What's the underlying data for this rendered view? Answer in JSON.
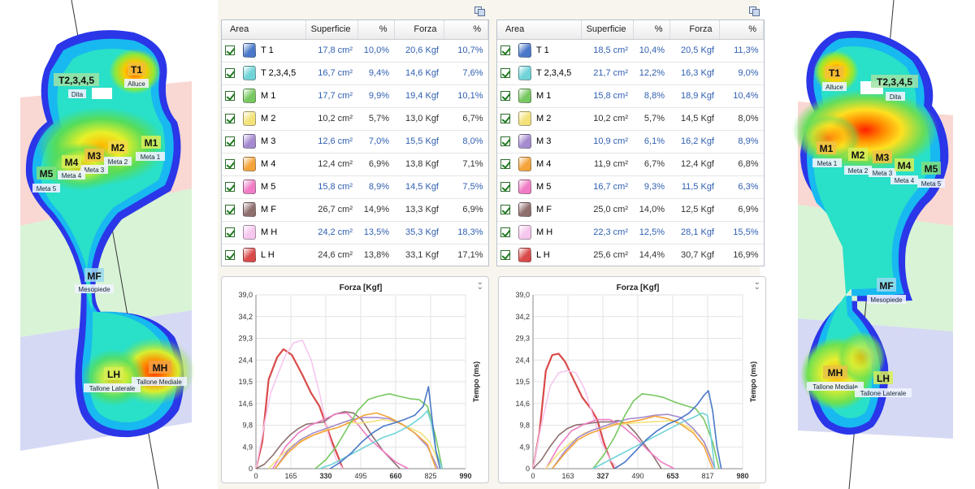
{
  "feet": {
    "left": {
      "labels": [
        {
          "key": "T1",
          "title": "T1",
          "sub": "Alluce"
        },
        {
          "key": "T2",
          "title": "T2,3,4,5",
          "sub": "Dita"
        },
        {
          "key": "M1",
          "title": "M1",
          "sub": "Meta 1"
        },
        {
          "key": "M2",
          "title": "M2",
          "sub": "Meta 2"
        },
        {
          "key": "M3",
          "title": "M3",
          "sub": "Meta 3"
        },
        {
          "key": "M4",
          "title": "M4",
          "sub": "Meta 4"
        },
        {
          "key": "M5",
          "title": "M5",
          "sub": "Meta 5"
        },
        {
          "key": "MF",
          "title": "MF",
          "sub": "Mesopiede"
        },
        {
          "key": "LH",
          "title": "LH",
          "sub": "Tallone Laterale"
        },
        {
          "key": "MH",
          "title": "MH",
          "sub": "Tallone Mediale"
        }
      ]
    },
    "right": {
      "labels": [
        {
          "key": "T1",
          "title": "T1",
          "sub": "Alluce"
        },
        {
          "key": "T2",
          "title": "T2,3,4,5",
          "sub": "Dita"
        },
        {
          "key": "M1",
          "title": "M1",
          "sub": "Meta 1"
        },
        {
          "key": "M2",
          "title": "M2",
          "sub": "Meta 2"
        },
        {
          "key": "M3",
          "title": "M3",
          "sub": "Meta 3"
        },
        {
          "key": "M4",
          "title": "M4",
          "sub": "Meta 4"
        },
        {
          "key": "M5",
          "title": "M5",
          "sub": "Meta 5"
        },
        {
          "key": "MF",
          "title": "MF",
          "sub": "Mesopiede"
        },
        {
          "key": "MH",
          "title": "MH",
          "sub": "Tallone Mediale"
        },
        {
          "key": "LH",
          "title": "LH",
          "sub": "Tallone Laterale"
        }
      ]
    }
  },
  "table_headers": {
    "area": "Area",
    "superficie": "Superficie",
    "pct1": "%",
    "forza": "Forza",
    "pct2": "%"
  },
  "zone_colors": {
    "T 1": "#4a78c8",
    "T 2,3,4,5": "#6fd3d8",
    "M 1": "#77c860",
    "M 2": "#f3e27a",
    "M 3": "#a58ad0",
    "M 4": "#f4a43a",
    "M 5": "#ef7cc4",
    "M F": "#8f6e6e",
    "M H": "#f6c6ee",
    "L H": "#d94a4a"
  },
  "tables": {
    "left": [
      {
        "area": "T 1",
        "superficie": "17,8 cm²",
        "pct1": "10,0%",
        "forza": "20,6 Kgf",
        "pct2": "10,7%"
      },
      {
        "area": "T 2,3,4,5",
        "superficie": "16,7 cm²",
        "pct1": "9,4%",
        "forza": "14,6 Kgf",
        "pct2": "7,6%"
      },
      {
        "area": "M 1",
        "superficie": "17,7 cm²",
        "pct1": "9,9%",
        "forza": "19,4 Kgf",
        "pct2": "10,1%"
      },
      {
        "area": "M 2",
        "superficie": "10,2 cm²",
        "pct1": "5,7%",
        "forza": "13,0 Kgf",
        "pct2": "6,7%"
      },
      {
        "area": "M 3",
        "superficie": "12,6 cm²",
        "pct1": "7,0%",
        "forza": "15,5 Kgf",
        "pct2": "8,0%"
      },
      {
        "area": "M 4",
        "superficie": "12,4 cm²",
        "pct1": "6,9%",
        "forza": "13,8 Kgf",
        "pct2": "7,1%"
      },
      {
        "area": "M 5",
        "superficie": "15,8 cm²",
        "pct1": "8,9%",
        "forza": "14,5 Kgf",
        "pct2": "7,5%"
      },
      {
        "area": "M F",
        "superficie": "26,7 cm²",
        "pct1": "14,9%",
        "forza": "13,3 Kgf",
        "pct2": "6,9%"
      },
      {
        "area": "M H",
        "superficie": "24,2 cm²",
        "pct1": "13,5%",
        "forza": "35,3 Kgf",
        "pct2": "18,3%"
      },
      {
        "area": "L H",
        "superficie": "24,6 cm²",
        "pct1": "13,8%",
        "forza": "33,1 Kgf",
        "pct2": "17,1%"
      }
    ],
    "right": [
      {
        "area": "T 1",
        "superficie": "18,5 cm²",
        "pct1": "10,4%",
        "forza": "20,5 Kgf",
        "pct2": "11,3%"
      },
      {
        "area": "T 2,3,4,5",
        "superficie": "21,7 cm²",
        "pct1": "12,2%",
        "forza": "16,3 Kgf",
        "pct2": "9,0%"
      },
      {
        "area": "M 1",
        "superficie": "15,8 cm²",
        "pct1": "8,8%",
        "forza": "18,9 Kgf",
        "pct2": "10,4%"
      },
      {
        "area": "M 2",
        "superficie": "10,2 cm²",
        "pct1": "5,7%",
        "forza": "14,5 Kgf",
        "pct2": "8,0%"
      },
      {
        "area": "M 3",
        "superficie": "10,9 cm²",
        "pct1": "6,1%",
        "forza": "16,2 Kgf",
        "pct2": "8,9%"
      },
      {
        "area": "M 4",
        "superficie": "11,9 cm²",
        "pct1": "6,7%",
        "forza": "12,4 Kgf",
        "pct2": "6,8%"
      },
      {
        "area": "M 5",
        "superficie": "16,7 cm²",
        "pct1": "9,3%",
        "forza": "11,5 Kgf",
        "pct2": "6,3%"
      },
      {
        "area": "M F",
        "superficie": "25,0 cm²",
        "pct1": "14,0%",
        "forza": "12,5 Kgf",
        "pct2": "6,9%"
      },
      {
        "area": "M H",
        "superficie": "22,3 cm²",
        "pct1": "12,5%",
        "forza": "28,1 Kgf",
        "pct2": "15,5%"
      },
      {
        "area": "L H",
        "superficie": "25,6 cm²",
        "pct1": "14,4%",
        "forza": "30,7 Kgf",
        "pct2": "16,9%"
      }
    ]
  },
  "chart_data": [
    {
      "type": "line",
      "title": "Forza [Kgf]",
      "ylabel": "Tempo (ms)",
      "ylim": [
        0,
        39.0
      ],
      "xlim": [
        0,
        990
      ],
      "yticks": [
        "0",
        "4,9",
        "9,8",
        "14,6",
        "19,5",
        "24,4",
        "29,3",
        "34,2",
        "39,0"
      ],
      "xticks": [
        "0",
        "165",
        "330",
        "495",
        "660",
        "825",
        "990"
      ],
      "series": [
        {
          "area": "L H",
          "x": [
            0,
            30,
            60,
            100,
            130,
            170,
            220,
            260,
            300,
            330,
            360,
            390,
            410
          ],
          "y": [
            0,
            6,
            20,
            25,
            26.8,
            25.5,
            21,
            17,
            14,
            10,
            6,
            2.5,
            0
          ]
        },
        {
          "area": "M H",
          "x": [
            0,
            40,
            70,
            110,
            140,
            180,
            220,
            260,
            300,
            340,
            380,
            410
          ],
          "y": [
            0,
            10,
            17,
            22,
            25.5,
            28.3,
            28.8,
            24.5,
            17,
            8,
            2,
            0
          ]
        },
        {
          "area": "M F",
          "x": [
            0,
            40,
            80,
            120,
            160,
            200,
            240,
            280,
            320,
            370,
            420,
            460,
            500,
            540,
            600,
            680
          ],
          "y": [
            0,
            1,
            3,
            5.5,
            7.5,
            9,
            10,
            10.2,
            10.5,
            12.2,
            12.8,
            12.5,
            11,
            8,
            4,
            0
          ]
        },
        {
          "area": "M 5",
          "x": [
            80,
            140,
            200,
            260,
            320,
            380,
            430,
            480,
            540,
            600,
            660,
            720
          ],
          "y": [
            0,
            5,
            8,
            9.8,
            11,
            12.3,
            12.5,
            10,
            6.5,
            4,
            1.5,
            0
          ]
        },
        {
          "area": "M 2",
          "x": [
            60,
            120,
            180,
            240,
            300,
            360,
            420,
            480,
            540,
            600,
            660,
            720,
            780,
            820,
            850,
            870
          ],
          "y": [
            0,
            3,
            5.5,
            7,
            8,
            9.5,
            10.5,
            10.2,
            10.5,
            11,
            10.5,
            9.3,
            8,
            6,
            3,
            0
          ]
        },
        {
          "area": "M 3",
          "x": [
            90,
            150,
            210,
            270,
            330,
            390,
            450,
            510,
            570,
            630,
            690,
            750,
            810,
            860
          ],
          "y": [
            0,
            4,
            6.5,
            8,
            9,
            10,
            11,
            11.5,
            11.5,
            11.2,
            10,
            8,
            5,
            0
          ]
        },
        {
          "area": "M 4",
          "x": [
            90,
            150,
            210,
            270,
            330,
            390,
            450,
            510,
            570,
            630,
            690,
            750,
            810,
            850
          ],
          "y": [
            0,
            3.5,
            6,
            7.5,
            8.5,
            9.3,
            10.5,
            12,
            12.5,
            11.5,
            10,
            8,
            5.5,
            0
          ]
        },
        {
          "area": "M 1",
          "x": [
            280,
            330,
            380,
            430,
            480,
            530,
            580,
            630,
            680,
            730,
            770,
            810,
            850,
            880
          ],
          "y": [
            0,
            2,
            5,
            9,
            13,
            15.5,
            16.3,
            16.8,
            16.2,
            15.7,
            15.5,
            14,
            7,
            0
          ]
        },
        {
          "area": "T 2,3,4,5",
          "x": [
            300,
            360,
            420,
            480,
            540,
            600,
            660,
            720,
            780,
            810,
            830,
            850,
            880
          ],
          "y": [
            0,
            1,
            2.5,
            4,
            5.5,
            7,
            8,
            9.5,
            11.5,
            13,
            10,
            4,
            0
          ]
        },
        {
          "area": "T 1",
          "x": [
            350,
            400,
            450,
            500,
            550,
            600,
            650,
            700,
            750,
            790,
            815,
            830,
            850,
            870
          ],
          "y": [
            0,
            1.5,
            3.5,
            6,
            8,
            9.5,
            10.2,
            11,
            12,
            14,
            18.4,
            12,
            4,
            0
          ]
        }
      ]
    },
    {
      "type": "line",
      "title": "Forza [Kgf]",
      "ylabel": "Tempo (ms)",
      "ylim": [
        0,
        39.0
      ],
      "xlim": [
        0,
        980
      ],
      "yticks": [
        "0",
        "4,9",
        "9,8",
        "14,6",
        "19,5",
        "24,4",
        "29,3",
        "34,2",
        "39,0"
      ],
      "xticks": [
        "0",
        "163",
        "327",
        "490",
        "653",
        "817",
        "980"
      ],
      "series": [
        {
          "area": "L H",
          "x": [
            0,
            30,
            60,
            90,
            120,
            150,
            190,
            230,
            270,
            300,
            330,
            360,
            380
          ],
          "y": [
            0,
            8,
            22,
            25.5,
            25.8,
            24,
            20,
            16,
            13.5,
            11,
            6,
            2,
            0
          ]
        },
        {
          "area": "M H",
          "x": [
            0,
            40,
            80,
            120,
            160,
            200,
            240,
            280,
            320,
            360,
            400
          ],
          "y": [
            0,
            10,
            18.5,
            21.5,
            22,
            21.5,
            18,
            12,
            6,
            2,
            0
          ]
        },
        {
          "area": "M F",
          "x": [
            0,
            40,
            80,
            120,
            160,
            200,
            240,
            280,
            320,
            360,
            400,
            440,
            480,
            520,
            560,
            600
          ],
          "y": [
            0,
            2,
            5,
            7.5,
            9,
            9.8,
            10,
            10.3,
            10.5,
            10.5,
            10.8,
            10,
            8,
            5.5,
            3,
            0
          ]
        },
        {
          "area": "M 5",
          "x": [
            60,
            120,
            180,
            240,
            300,
            360,
            420,
            480,
            540,
            600,
            660
          ],
          "y": [
            0,
            5,
            8.5,
            10,
            11,
            11,
            9.5,
            7,
            4,
            1.5,
            0
          ]
        },
        {
          "area": "M 2",
          "x": [
            60,
            120,
            180,
            240,
            300,
            360,
            420,
            480,
            540,
            600,
            660,
            720,
            780,
            820,
            850
          ],
          "y": [
            0,
            3.5,
            6,
            8,
            9,
            10,
            10,
            10.3,
            10.5,
            10.6,
            10.8,
            9.5,
            7.5,
            4,
            0
          ]
        },
        {
          "area": "M 3",
          "x": [
            90,
            150,
            210,
            270,
            330,
            390,
            450,
            510,
            570,
            630,
            690,
            750,
            800,
            850
          ],
          "y": [
            0,
            4,
            7,
            8.5,
            9.5,
            10.5,
            11.2,
            11.5,
            12,
            12.2,
            11.5,
            9,
            6,
            0
          ]
        },
        {
          "area": "M 4",
          "x": [
            90,
            150,
            210,
            270,
            330,
            390,
            450,
            510,
            570,
            630,
            690,
            750,
            800,
            840
          ],
          "y": [
            0,
            3.5,
            6.5,
            8,
            9,
            10,
            10.5,
            11,
            11.8,
            11.2,
            10,
            8,
            5,
            0
          ]
        },
        {
          "area": "M 1",
          "x": [
            280,
            330,
            380,
            430,
            470,
            510,
            560,
            610,
            660,
            710,
            760,
            800,
            840,
            870
          ],
          "y": [
            0,
            3,
            7,
            12,
            15.2,
            16.8,
            16.5,
            16,
            15,
            14.2,
            13.5,
            11,
            6,
            0
          ]
        },
        {
          "area": "T 2,3,4,5",
          "x": [
            280,
            340,
            400,
            460,
            520,
            580,
            640,
            700,
            750,
            790,
            815,
            830,
            850
          ],
          "y": [
            0,
            1.5,
            3,
            4.5,
            6,
            7.5,
            9,
            10.5,
            11.5,
            12.5,
            12,
            8,
            0
          ]
        },
        {
          "area": "T 1",
          "x": [
            380,
            430,
            480,
            530,
            580,
            630,
            680,
            730,
            770,
            800,
            820,
            840,
            860,
            880
          ],
          "y": [
            0,
            1.5,
            4,
            6.5,
            8.5,
            10,
            11,
            12.5,
            14.5,
            16.5,
            17.5,
            13,
            5,
            0
          ]
        }
      ]
    }
  ]
}
